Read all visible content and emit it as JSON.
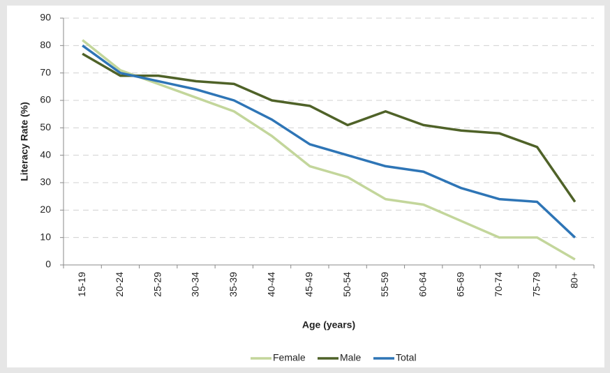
{
  "chart_data": {
    "type": "line",
    "ylabel": "Literacy Rate (%)",
    "xlabel": "Age (years)",
    "categories": [
      "15-19",
      "20-24",
      "25-29",
      "30-34",
      "35-39",
      "40-44",
      "45-49",
      "50-54",
      "55-59",
      "60-64",
      "65-69",
      "70-74",
      "75-79",
      "80+"
    ],
    "series": [
      {
        "name": "Female",
        "color": "#c3d69b",
        "values": [
          82,
          71,
          66,
          61,
          56,
          47,
          36,
          32,
          24,
          22,
          16,
          10,
          10,
          2
        ]
      },
      {
        "name": "Male",
        "color": "#4f6228",
        "values": [
          77,
          69,
          69,
          67,
          66,
          60,
          58,
          51,
          56,
          51,
          49,
          48,
          43,
          23
        ]
      },
      {
        "name": "Total",
        "color": "#2e75b6",
        "values": [
          80,
          70,
          67,
          64,
          60,
          53,
          44,
          40,
          36,
          34,
          28,
          24,
          23,
          10
        ]
      }
    ],
    "ylim": [
      0,
      90
    ],
    "yticks": [
      0,
      10,
      20,
      30,
      40,
      50,
      60,
      70,
      80,
      90
    ],
    "grid": true,
    "legend": "bottom"
  }
}
